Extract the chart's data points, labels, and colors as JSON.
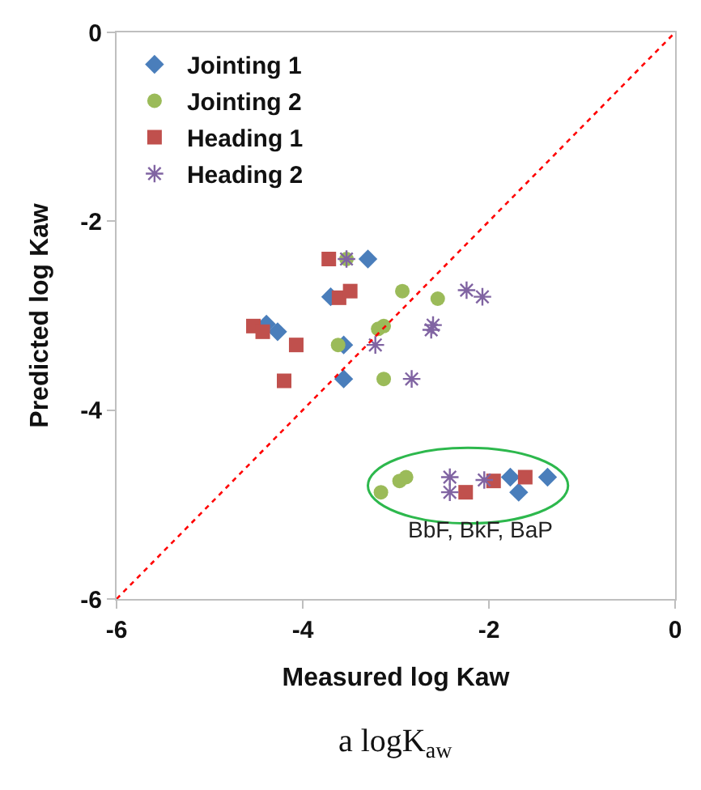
{
  "chart_data": {
    "type": "scatter",
    "xlabel": "Measured log Kaw",
    "ylabel": "Predicted log Kaw",
    "xlim": [
      -6,
      0
    ],
    "ylim": [
      -6,
      0
    ],
    "xticks": [
      -6,
      -4,
      -2,
      0
    ],
    "yticks": [
      -6,
      -4,
      -2,
      0
    ],
    "legend": "top left",
    "series": [
      {
        "name": "Jointing 1",
        "color": "#4a7ebb",
        "marker": "diamond",
        "x": [
          -3.3,
          -3.7,
          -4.39,
          -4.27,
          -3.56,
          -3.56,
          -1.77,
          -1.68,
          -1.37
        ],
        "values": [
          -2.4,
          -2.8,
          -3.09,
          -3.17,
          -3.31,
          -3.67,
          -4.71,
          -4.87,
          -4.71
        ]
      },
      {
        "name": "Jointing 2",
        "color": "#9bbb59",
        "marker": "circle",
        "x": [
          -3.53,
          -2.93,
          -2.55,
          -3.19,
          -3.13,
          -3.62,
          -3.13,
          -3.16,
          -2.96,
          -2.89
        ],
        "values": [
          -2.4,
          -2.74,
          -2.82,
          -3.14,
          -3.11,
          -3.31,
          -3.67,
          -4.87,
          -4.75,
          -4.71
        ]
      },
      {
        "name": "Heading 1",
        "color": "#c0504d",
        "marker": "square",
        "x": [
          -3.72,
          -3.61,
          -3.49,
          -4.53,
          -4.43,
          -4.07,
          -4.2,
          -2.25,
          -1.95,
          -1.61
        ],
        "values": [
          -2.4,
          -2.81,
          -2.74,
          -3.11,
          -3.17,
          -3.31,
          -3.69,
          -4.87,
          -4.75,
          -4.71
        ]
      },
      {
        "name": "Heading 2",
        "color": "#8064a2",
        "marker": "cross",
        "x": [
          -3.53,
          -2.24,
          -2.07,
          -2.6,
          -2.62,
          -3.22,
          -2.83,
          -2.42,
          -2.42,
          -2.05
        ],
        "values": [
          -2.4,
          -2.73,
          -2.8,
          -3.1,
          -3.15,
          -3.31,
          -3.67,
          -4.71,
          -4.87,
          -4.74
        ]
      },
      {
        "type": "line",
        "color": "#ff0000",
        "line_style": "dotted",
        "marker": "none",
        "x": [
          -6,
          0
        ],
        "values": [
          -6,
          0
        ]
      }
    ],
    "annotations": [
      "BbF, BkF, BaP",
      "a logK$_{aw}$"
    ]
  }
}
